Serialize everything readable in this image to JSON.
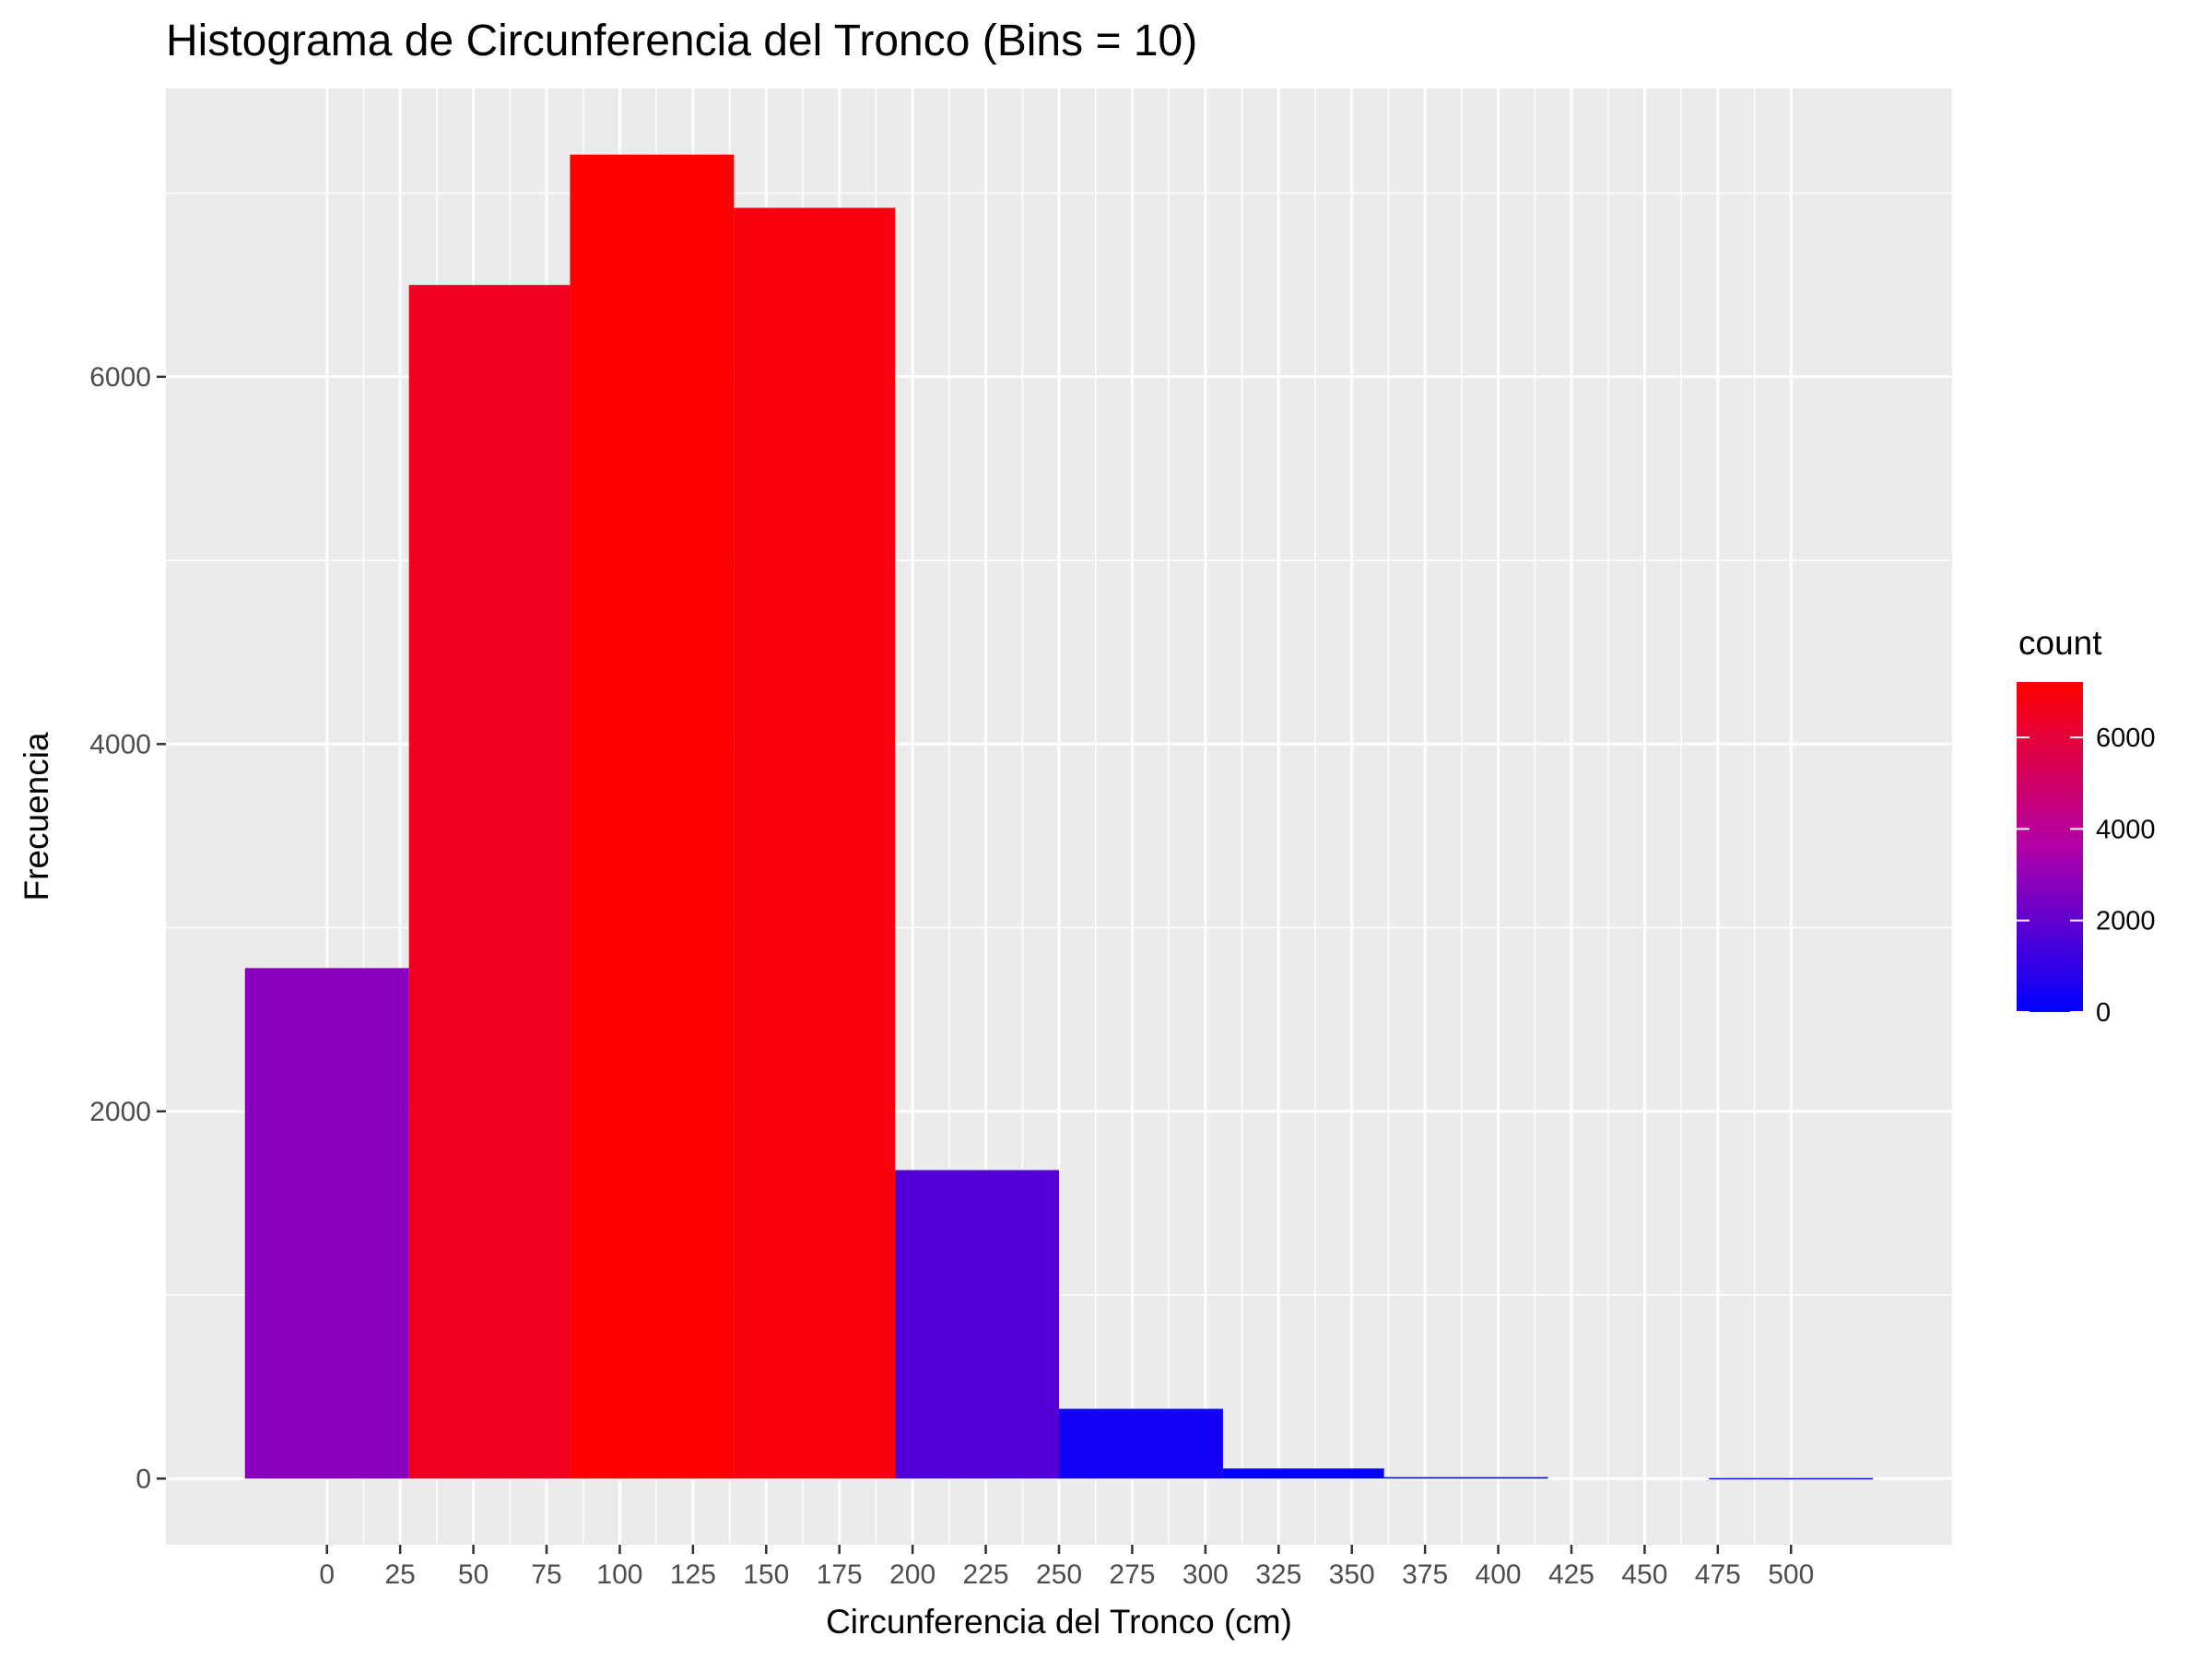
{
  "chart_data": {
    "type": "bar",
    "title": "Histograma de Circunferencia del Tronco (Bins = 10)",
    "xlabel": "Circunferencia del Tronco (cm)",
    "ylabel": "Frecuencia",
    "bin_edges": [
      -28,
      28,
      83,
      139,
      194,
      250,
      306,
      361,
      417,
      472,
      528
    ],
    "values": [
      2780,
      6500,
      7210,
      6920,
      1680,
      380,
      55,
      8,
      0,
      3
    ],
    "x_ticks": [
      0,
      25,
      50,
      75,
      100,
      125,
      150,
      175,
      200,
      225,
      250,
      275,
      300,
      325,
      350,
      375,
      400,
      425,
      450,
      475,
      500
    ],
    "y_ticks": [
      0,
      2000,
      4000,
      6000
    ],
    "xlim": [
      -55,
      555
    ],
    "ylim": [
      -360,
      7570
    ],
    "grid": true,
    "legend": {
      "title": "count",
      "position": "right",
      "ticks": [
        0,
        2000,
        4000,
        6000
      ],
      "range": [
        0,
        7210
      ],
      "color_low": "#0000ff",
      "color_high": "#ff0000"
    },
    "colors": {
      "panel_background": "#ebebeb",
      "grid_line": "#ffffff"
    }
  }
}
